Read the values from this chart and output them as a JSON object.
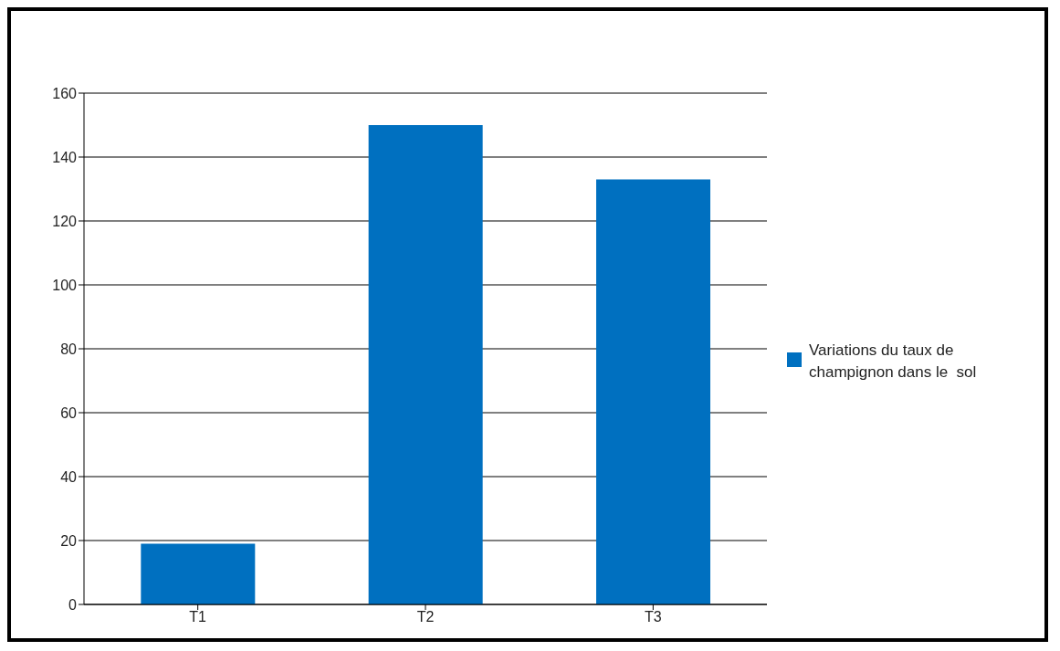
{
  "chart_data": {
    "type": "bar",
    "categories": [
      "T1",
      "T2",
      "T3"
    ],
    "series": [
      {
        "name": "Variations du taux de champignon dans le  sol",
        "color": "#0070c0",
        "values": [
          19,
          150,
          133
        ]
      }
    ],
    "ylim": [
      0,
      160
    ],
    "yticks": [
      0,
      20,
      40,
      60,
      80,
      100,
      120,
      140,
      160
    ],
    "grid": "y",
    "legend": "right"
  }
}
